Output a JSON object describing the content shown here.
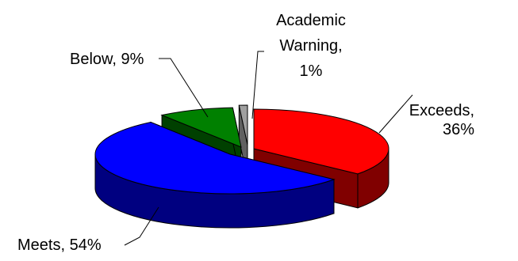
{
  "chart_data": {
    "type": "pie",
    "style": "3d-exploded",
    "title": "",
    "slices": [
      {
        "category": "Exceeds",
        "value": 36,
        "label": [
          "Exceeds,",
          "36%"
        ],
        "color": "#ff0000",
        "side_color": "#800000"
      },
      {
        "category": "Meets",
        "value": 54,
        "label": [
          "Meets, 54%"
        ],
        "color": "#0000ff",
        "side_color": "#000080"
      },
      {
        "category": "Below",
        "value": 9,
        "label": [
          "Below, 9%"
        ],
        "color": "#008000",
        "side_color": "#004000"
      },
      {
        "category": "Academic Warning",
        "value": 1,
        "label": [
          "Academic",
          "Warning,",
          "1%"
        ],
        "color": "#a0a0a0",
        "side_color": "#606060"
      }
    ],
    "legend": "none",
    "grid": false
  }
}
